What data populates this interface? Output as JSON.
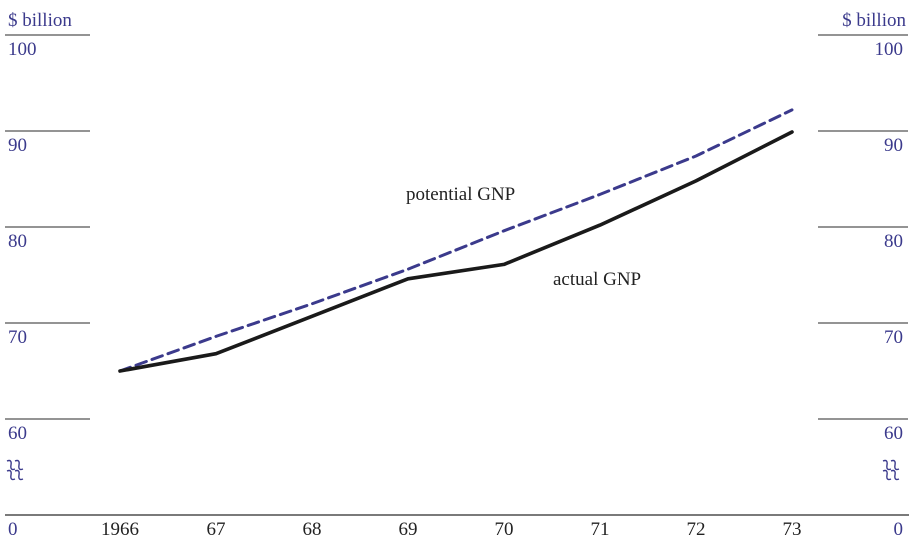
{
  "chart_data": {
    "type": "line",
    "x": [
      "1966",
      "67",
      "68",
      "69",
      "70",
      "71",
      "72",
      "73"
    ],
    "series": [
      {
        "name": "potential GNP",
        "values": [
          65.0,
          68.6,
          72.0,
          75.6,
          79.6,
          83.4,
          87.4,
          92.2
        ],
        "color": "#3b3a8c",
        "style": "dashed"
      },
      {
        "name": "actual GNP",
        "values": [
          65.0,
          66.8,
          70.7,
          74.6,
          76.1,
          80.2,
          84.8,
          89.9
        ],
        "color": "#1a1a1a",
        "style": "solid"
      }
    ],
    "y_unit_left": "$ billion",
    "y_unit_right": "$ billion",
    "y_ticks": [
      100,
      90,
      80,
      70,
      60
    ],
    "y_baseline_label": "0",
    "ylim": [
      60,
      100
    ],
    "axis_break": true,
    "grid": false
  }
}
